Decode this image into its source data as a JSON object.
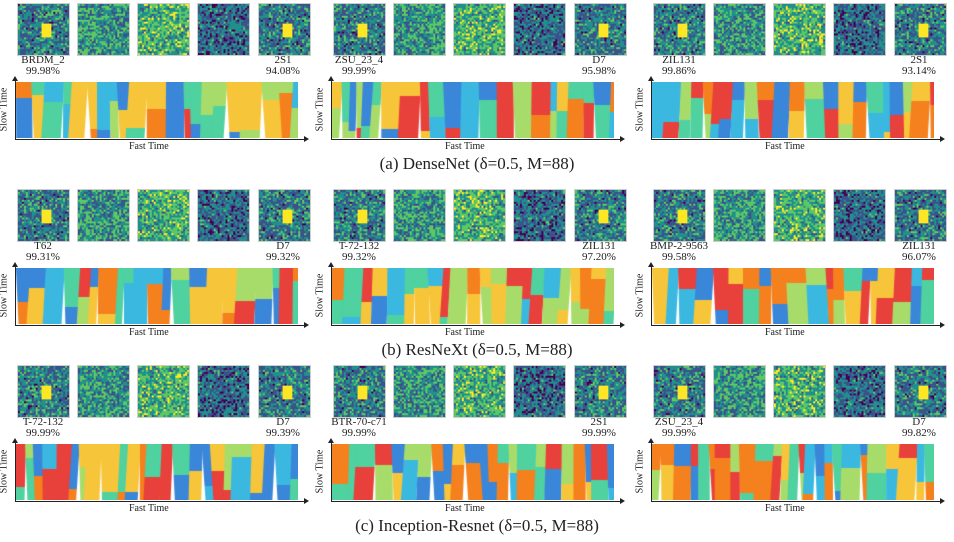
{
  "axes": {
    "x": "Fast Time",
    "y": "Slow Time"
  },
  "rows": [
    {
      "caption": "(a) DenseNet (δ=0.5, M=88)",
      "panels": [
        {
          "left_label": "BRDM_2",
          "left_pct": "99.98%",
          "right_label": "2S1",
          "right_pct": "94.08%"
        },
        {
          "left_label": "ZSU_23_4",
          "left_pct": "99.99%",
          "right_label": "D7",
          "right_pct": "95.98%"
        },
        {
          "left_label": "ZIL131",
          "left_pct": "99.86%",
          "right_label": "2S1",
          "right_pct": "93.14%"
        }
      ]
    },
    {
      "caption": "(b) ResNeXt (δ=0.5, M=88)",
      "panels": [
        {
          "left_label": "T62",
          "left_pct": "99.31%",
          "right_label": "D7",
          "right_pct": "99.32%"
        },
        {
          "left_label": "T-72-132",
          "left_pct": "99.32%",
          "right_label": "ZIL131",
          "right_pct": "97.20%"
        },
        {
          "left_label": "BMP-2-9563",
          "left_pct": "99.58%",
          "right_label": "ZIL131",
          "right_pct": "96.07%"
        }
      ]
    },
    {
      "caption": "(c) Inception-Resnet (δ=0.5, M=88)",
      "panels": [
        {
          "left_label": "T-72-132",
          "left_pct": "99.99%",
          "right_label": "D7",
          "right_pct": "99.39%"
        },
        {
          "left_label": "BTR-70-c71",
          "left_pct": "99.99%",
          "right_label": "2S1",
          "right_pct": "99.99%"
        },
        {
          "left_label": "ZSU_23_4",
          "left_pct": "99.99%",
          "right_label": "D7",
          "right_pct": "99.82%"
        }
      ]
    }
  ],
  "heatmap_colors": [
    "#e8403a",
    "#f5801e",
    "#f7c53a",
    "#a8dc6a",
    "#4fd1a0",
    "#3bb8e0",
    "#3a86d8"
  ],
  "viridis": [
    "#440154",
    "#3b528b",
    "#21908d",
    "#5dc863",
    "#fde725"
  ]
}
